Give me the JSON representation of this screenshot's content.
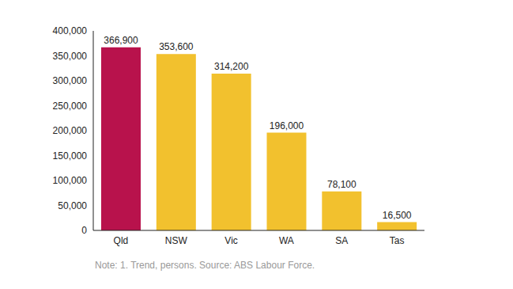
{
  "chart_data": {
    "type": "bar",
    "caption": "Note: 1. Trend, persons. Source: ABS Labour Force.",
    "categories": [
      "Qld",
      "NSW",
      "Vic",
      "WA",
      "SA",
      "Tas"
    ],
    "values": [
      366900,
      353600,
      314200,
      196000,
      78100,
      16500
    ],
    "value_labels": [
      "366,900",
      "353,600",
      "314,200",
      "196,000",
      "78,100",
      "16,500"
    ],
    "colors": [
      "#b8124c",
      "#f2c12e",
      "#f2c12e",
      "#f2c12e",
      "#f2c12e",
      "#f2c12e"
    ],
    "ylim": [
      0,
      400000
    ],
    "yticks": [
      0,
      {
        "value": 50000,
        "label": "50,000"
      },
      {
        "value": 100000,
        "label": "100,000"
      },
      {
        "value": 150000,
        "label": "150,000"
      },
      {
        "value": 200000,
        "label": "200,000"
      },
      {
        "value": 250000,
        "label": "250,000"
      },
      {
        "value": 300000,
        "label": "300,000"
      },
      {
        "value": 350000,
        "label": "350,000"
      },
      {
        "value": 400000,
        "label": "400,000"
      }
    ],
    "grid": false,
    "data_labels": true
  }
}
